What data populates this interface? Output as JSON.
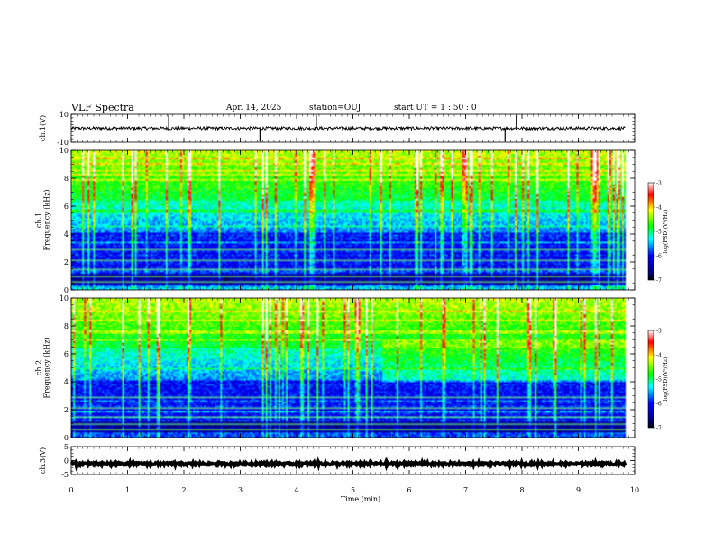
{
  "header": {
    "title": "VLF Spectra",
    "date": "Apr. 14, 2025",
    "station": "station=OUJ",
    "start": "start UT =  1 : 50 : 0"
  },
  "chart_data": [
    {
      "type": "line",
      "panel": "ch1-waveform",
      "ylabel": "ch.1(V)",
      "ylim": [
        -10,
        10
      ],
      "y_ticks": [
        "10",
        "-10"
      ],
      "xlim": [
        0,
        10
      ],
      "baseline": 0,
      "spikes_min": [
        1.73,
        3.35,
        4.35,
        7.7,
        7.9
      ],
      "color": "#000000"
    },
    {
      "type": "heatmap",
      "panel": "ch1-spectrogram",
      "ylabel": "ch.1\nFrequency (kHz)",
      "ylabel_lines": [
        "ch.1",
        "Frequency (kHz)"
      ],
      "xlim": [
        0,
        10
      ],
      "ylim": [
        0,
        10
      ],
      "y_ticks": [
        "0",
        "2",
        "4",
        "6",
        "8",
        "10"
      ],
      "data_end_min": 9.83,
      "colorbar": {
        "label": "log(PSD)(V²/Hz)",
        "range": [
          -7,
          -3
        ],
        "ticks": [
          "-3",
          "-4",
          "-5",
          "-6",
          "-7"
        ]
      }
    },
    {
      "type": "heatmap",
      "panel": "ch2-spectrogram",
      "ylabel": "ch.2\nFrequency (kHz)",
      "ylabel_lines": [
        "ch.2",
        "Frequency (kHz)"
      ],
      "xlim": [
        0,
        10
      ],
      "ylim": [
        0,
        10
      ],
      "y_ticks": [
        "0",
        "2",
        "4",
        "6",
        "8",
        "10"
      ],
      "data_end_min": 9.83,
      "colorbar": {
        "label": "log(PSD)(V²/Hz)",
        "range": [
          -7,
          -3
        ],
        "ticks": [
          "-3",
          "-4",
          "-5",
          "-6",
          "-7"
        ]
      }
    },
    {
      "type": "line",
      "panel": "ch3-waveform",
      "ylabel": "ch.3(V)",
      "ylim": [
        -5,
        5
      ],
      "y_ticks": [
        "5",
        "0",
        "-5"
      ],
      "xlim": [
        0,
        10
      ],
      "baseline": -1.2,
      "color": "#000000"
    }
  ],
  "xaxis": {
    "label": "Time (min)",
    "ticks": [
      "0",
      "1",
      "2",
      "3",
      "4",
      "5",
      "6",
      "7",
      "8",
      "9",
      "10"
    ]
  }
}
